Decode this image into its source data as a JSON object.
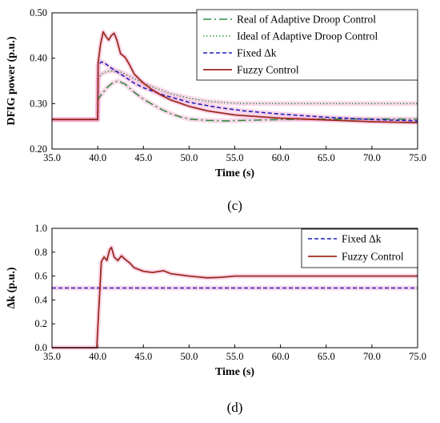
{
  "colors": {
    "real_adaptive": "#2e8b3e",
    "ideal_adaptive": "#3a9a4a",
    "fixed": "#1f1fb8",
    "fuzzy": "#9b2a1e",
    "glow": "#f5a8d2"
  },
  "chart_data": [
    {
      "type": "line",
      "panel_label": "(c)",
      "xlabel": "Time (s)",
      "ylabel": "DFIG power (p.u.)",
      "xlim": [
        35,
        75
      ],
      "ylim": [
        0.2,
        0.5
      ],
      "x_ticks": [
        "35.0",
        "40.0",
        "45.0",
        "50.0",
        "55.0",
        "60.0",
        "65.0",
        "70.0",
        "75.0"
      ],
      "y_ticks": [
        "0.20",
        "0.30",
        "0.40",
        "0.50"
      ],
      "legend_position": "top-right",
      "grid": false,
      "series": [
        {
          "name": "Real of Adaptive Droop Control",
          "style": "dash-dot",
          "points": [
            [
              35,
              0.265
            ],
            [
              40,
              0.265
            ],
            [
              40.05,
              0.31
            ],
            [
              40.4,
              0.32
            ],
            [
              41,
              0.335
            ],
            [
              41.6,
              0.345
            ],
            [
              42.2,
              0.35
            ],
            [
              43,
              0.343
            ],
            [
              44,
              0.325
            ],
            [
              45,
              0.31
            ],
            [
              46,
              0.298
            ],
            [
              47,
              0.287
            ],
            [
              48,
              0.278
            ],
            [
              49,
              0.271
            ],
            [
              50,
              0.266
            ],
            [
              52,
              0.263
            ],
            [
              54,
              0.262
            ],
            [
              56,
              0.263
            ],
            [
              60,
              0.265
            ],
            [
              65,
              0.266
            ],
            [
              70,
              0.266
            ],
            [
              75,
              0.266
            ]
          ]
        },
        {
          "name": "Ideal of Adaptive Droop Control",
          "style": "dotted",
          "points": [
            [
              35,
              0.265
            ],
            [
              40,
              0.265
            ],
            [
              40.05,
              0.355
            ],
            [
              40.4,
              0.365
            ],
            [
              41,
              0.371
            ],
            [
              41.7,
              0.372
            ],
            [
              42.5,
              0.37
            ],
            [
              43.5,
              0.36
            ],
            [
              45,
              0.345
            ],
            [
              46.5,
              0.333
            ],
            [
              48,
              0.322
            ],
            [
              50,
              0.312
            ],
            [
              52,
              0.305
            ],
            [
              54,
              0.302
            ],
            [
              56,
              0.3
            ],
            [
              60,
              0.3
            ],
            [
              65,
              0.3
            ],
            [
              70,
              0.3
            ],
            [
              75,
              0.3
            ]
          ]
        },
        {
          "name": "Fixed Δk",
          "style": "dashed",
          "points": [
            [
              35,
              0.265
            ],
            [
              40,
              0.265
            ],
            [
              40.05,
              0.385
            ],
            [
              40.4,
              0.392
            ],
            [
              40.7,
              0.39
            ],
            [
              41.5,
              0.378
            ],
            [
              42.5,
              0.365
            ],
            [
              44,
              0.345
            ],
            [
              45,
              0.335
            ],
            [
              47,
              0.32
            ],
            [
              50,
              0.303
            ],
            [
              53,
              0.292
            ],
            [
              56,
              0.284
            ],
            [
              60,
              0.277
            ],
            [
              65,
              0.27
            ],
            [
              70,
              0.265
            ],
            [
              75,
              0.262
            ]
          ]
        },
        {
          "name": "Fuzzy Control",
          "style": "solid",
          "points": [
            [
              35,
              0.265
            ],
            [
              40,
              0.265
            ],
            [
              40.05,
              0.39
            ],
            [
              40.3,
              0.43
            ],
            [
              40.6,
              0.458
            ],
            [
              40.9,
              0.448
            ],
            [
              41.2,
              0.44
            ],
            [
              41.5,
              0.45
            ],
            [
              41.8,
              0.455
            ],
            [
              42.1,
              0.44
            ],
            [
              42.5,
              0.41
            ],
            [
              43,
              0.402
            ],
            [
              43.5,
              0.385
            ],
            [
              44,
              0.365
            ],
            [
              45,
              0.345
            ],
            [
              46,
              0.33
            ],
            [
              47,
              0.318
            ],
            [
              48,
              0.308
            ],
            [
              50,
              0.294
            ],
            [
              52,
              0.284
            ],
            [
              55,
              0.275
            ],
            [
              60,
              0.268
            ],
            [
              65,
              0.264
            ],
            [
              70,
              0.26
            ],
            [
              75,
              0.258
            ]
          ]
        }
      ]
    },
    {
      "type": "line",
      "panel_label": "(d)",
      "xlabel": "Time (s)",
      "ylabel": "Δk (p.u.)",
      "xlim": [
        35,
        75
      ],
      "ylim": [
        0,
        1
      ],
      "x_ticks": [
        "35.0",
        "40.0",
        "45.0",
        "50.0",
        "55.0",
        "60.0",
        "65.0",
        "70.0",
        "75.0"
      ],
      "y_ticks": [
        "0.0",
        "0.2",
        "0.4",
        "0.6",
        "0.8",
        "1.0"
      ],
      "legend_position": "top-right",
      "grid": false,
      "series": [
        {
          "name": "Fixed Δk",
          "style": "dashed",
          "points": [
            [
              35,
              0.5
            ],
            [
              75,
              0.5
            ]
          ]
        },
        {
          "name": "Fuzzy Control",
          "style": "solid",
          "points": [
            [
              35,
              0
            ],
            [
              39.9,
              0
            ],
            [
              40.1,
              0.3
            ],
            [
              40.4,
              0.72
            ],
            [
              40.7,
              0.76
            ],
            [
              41,
              0.73
            ],
            [
              41.3,
              0.82
            ],
            [
              41.5,
              0.84
            ],
            [
              41.8,
              0.76
            ],
            [
              42.2,
              0.73
            ],
            [
              42.6,
              0.77
            ],
            [
              43,
              0.74
            ],
            [
              43.5,
              0.71
            ],
            [
              44,
              0.67
            ],
            [
              45,
              0.64
            ],
            [
              46,
              0.63
            ],
            [
              47.2,
              0.645
            ],
            [
              48,
              0.62
            ],
            [
              50,
              0.6
            ],
            [
              52,
              0.585
            ],
            [
              53.5,
              0.59
            ],
            [
              55,
              0.6
            ],
            [
              60,
              0.6
            ],
            [
              65,
              0.6
            ],
            [
              70,
              0.6
            ],
            [
              75,
              0.6
            ]
          ]
        }
      ]
    }
  ]
}
